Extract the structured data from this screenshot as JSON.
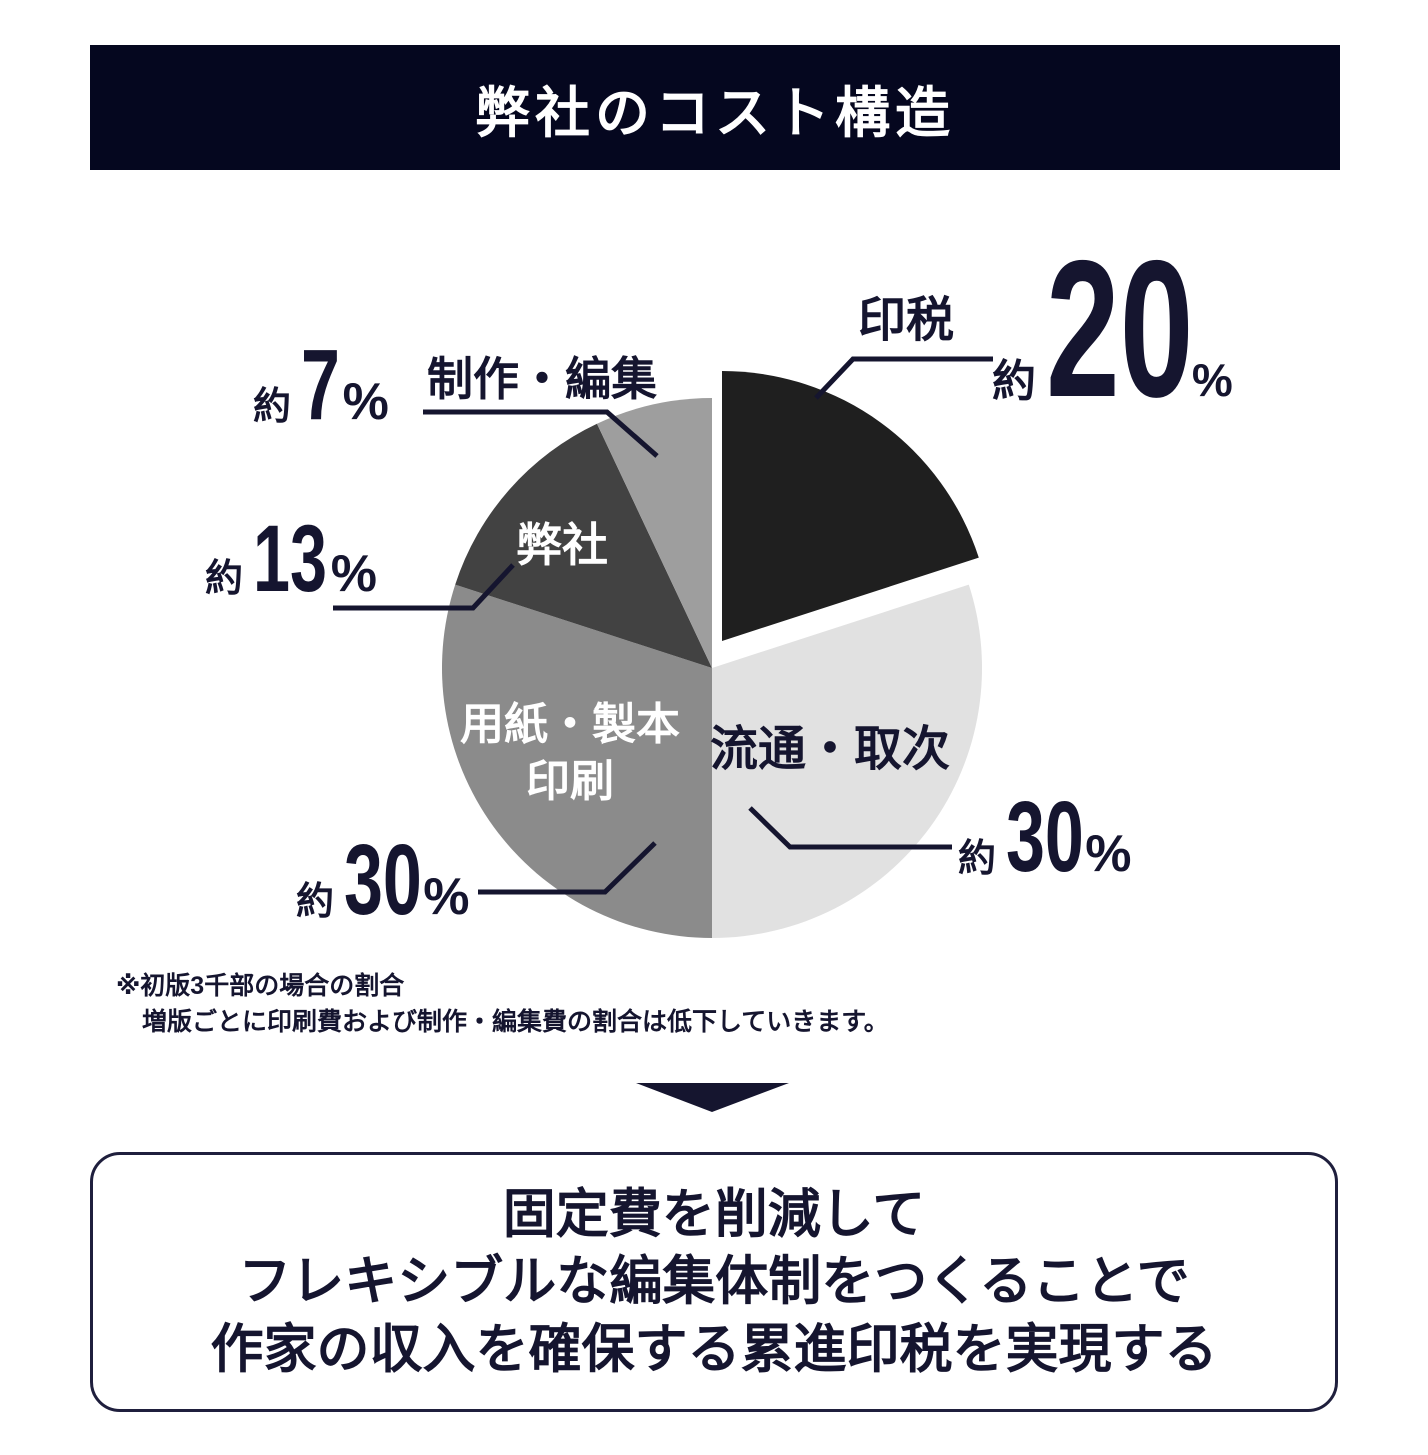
{
  "header": {
    "title": "弊社のコスト構造"
  },
  "chart_data": {
    "type": "pie",
    "title": "弊社のコスト構造",
    "unit": "%",
    "start_angle_deg": 0,
    "direction": "clockwise",
    "approx_prefix": "約",
    "slices": [
      {
        "label": "印税",
        "value": 20,
        "display": "約20%",
        "color": "#1f1f1f",
        "exploded": true,
        "label_position": "outside"
      },
      {
        "label": "流通・取次",
        "value": 30,
        "display": "約30%",
        "color": "#e1e1e1",
        "exploded": false,
        "label_position": "inside"
      },
      {
        "label": "用紙・製本印刷",
        "value": 30,
        "display": "約30%",
        "color": "#8b8b8b",
        "exploded": false,
        "label_position": "inside"
      },
      {
        "label": "弊社",
        "value": 13,
        "display": "約13%",
        "color": "#424242",
        "exploded": false,
        "label_position": "inside"
      },
      {
        "label": "制作・編集",
        "value": 7,
        "display": "約7%",
        "color": "#9e9e9e",
        "exploded": false,
        "label_position": "outside"
      }
    ],
    "note": "※初版3千部の場合の割合 増版ごとに印刷費および制作・編集費の割合は低下していきます。"
  },
  "callouts": {
    "inzei": {
      "label": "印税",
      "yaku": "約",
      "num": "20",
      "pct": "%"
    },
    "seisaku": {
      "label": "制作・編集",
      "yaku": "約",
      "num": "7",
      "pct": "%"
    },
    "heisha": {
      "label": "弊社",
      "yaku": "約",
      "num": "13",
      "pct": "%"
    },
    "yoshi": {
      "line1": "用紙・製本",
      "line2": "印刷",
      "yaku": "約",
      "num": "30",
      "pct": "%"
    },
    "ryutsu": {
      "label": "流通・取次",
      "yaku": "約",
      "num": "30",
      "pct": "%"
    }
  },
  "footnote": {
    "line1": "※初版3千部の場合の割合",
    "line2": "増版ごとに印刷費および制作・編集費の割合は低下していきます。"
  },
  "conclusion": {
    "line1": "固定費を削減して",
    "line2": "フレキシブルな編集体制をつくることで",
    "line3": "作家の収入を確保する累進印税を実現する"
  },
  "colors": {
    "navy": "#15152f",
    "header_bg": "#05071f",
    "white": "#ffffff"
  }
}
